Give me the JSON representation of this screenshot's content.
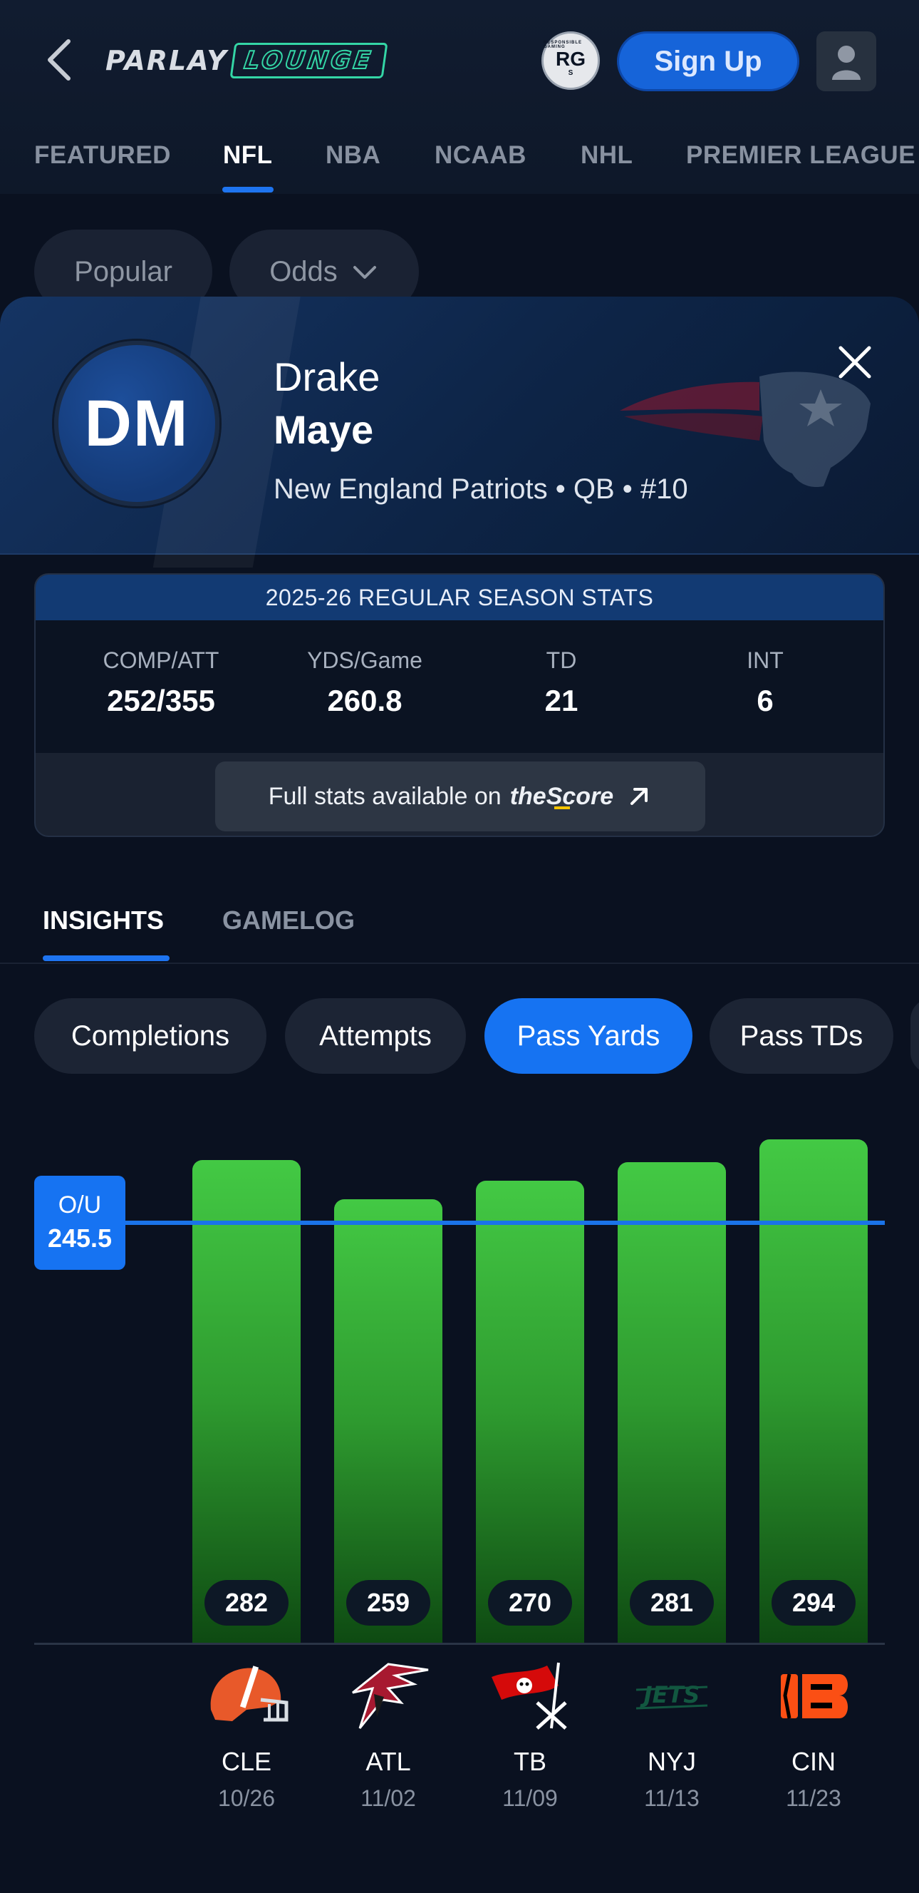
{
  "header": {
    "logo_main": "PARLAY",
    "logo_sub": "LOUNGE",
    "rg_badge": {
      "top": "RESPONSIBLE GAMING",
      "main": "RG",
      "bottom": "S"
    },
    "signup_label": "Sign Up",
    "icons": {
      "back": "chevron-left-icon",
      "profile": "user-icon"
    }
  },
  "league_tabs": [
    {
      "label": "FEATURED",
      "active": false
    },
    {
      "label": "NFL",
      "active": true
    },
    {
      "label": "NBA",
      "active": false
    },
    {
      "label": "NCAAB",
      "active": false
    },
    {
      "label": "NHL",
      "active": false
    },
    {
      "label": "PREMIER LEAGUE",
      "active": false
    }
  ],
  "filters": {
    "popular": "Popular",
    "odds": "Odds"
  },
  "player": {
    "initials": "DM",
    "first_name": "Drake",
    "last_name": "Maye",
    "team_line": "New England Patriots • QB • #10"
  },
  "season_stats": {
    "title": "2025-26 REGULAR SEASON STATS",
    "items": [
      {
        "label": "COMP/ATT",
        "value": "252/355"
      },
      {
        "label": "YDS/Game",
        "value": "260.8"
      },
      {
        "label": "TD",
        "value": "21"
      },
      {
        "label": "INT",
        "value": "6"
      }
    ],
    "full_stats_label": "Full stats available on",
    "full_stats_brand": "theScore"
  },
  "sub_tabs": [
    {
      "label": "INSIGHTS",
      "active": true
    },
    {
      "label": "GAMELOG",
      "active": false
    }
  ],
  "stat_pills": [
    {
      "label": "Completions",
      "active": false
    },
    {
      "label": "Attempts",
      "active": false
    },
    {
      "label": "Pass Yards",
      "active": true
    },
    {
      "label": "Pass TDs",
      "active": false
    }
  ],
  "colors": {
    "accent": "#1673f2",
    "bar_top": "#43c944",
    "bar_bottom": "#0e4a12"
  },
  "chart_data": {
    "type": "bar",
    "metric": "Pass Yards",
    "line": {
      "label": "O/U",
      "value": 245.5
    },
    "categories": [
      "CLE",
      "ATL",
      "TB",
      "NYJ",
      "CIN"
    ],
    "dates": [
      "10/26",
      "11/02",
      "11/09",
      "11/13",
      "11/23"
    ],
    "values": [
      282,
      259,
      270,
      281,
      294
    ],
    "labels": [
      "282",
      "259",
      "270",
      "281",
      "294"
    ],
    "logos": [
      "browns-helmet-icon",
      "falcons-logo-icon",
      "buccaneers-flag-icon",
      "jets-wordmark-icon",
      "bengals-logo-icon"
    ]
  }
}
